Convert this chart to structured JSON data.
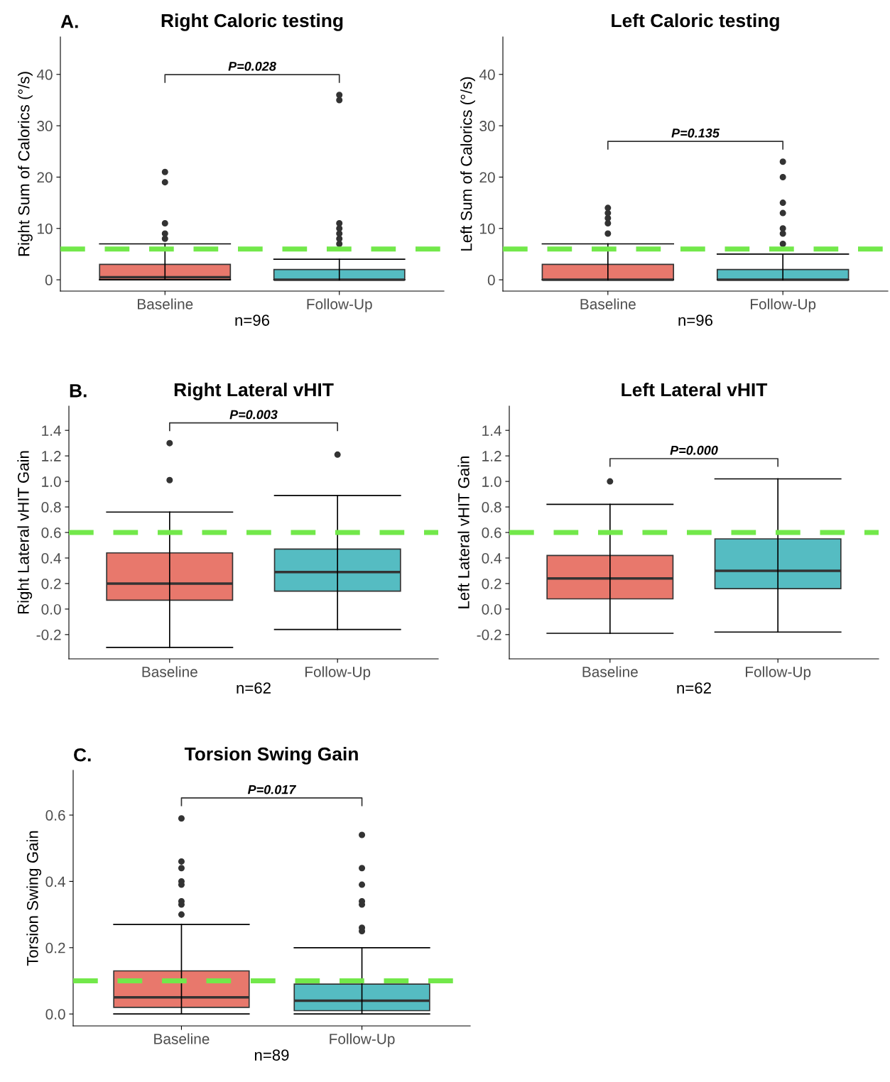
{
  "chart_data": [
    {
      "type": "box",
      "title": "Right Caloric testing",
      "ylabel": "Right Sum of Calorics (°/s)",
      "xlabel": "n=96",
      "categories": [
        "Baseline",
        "Follow-Up"
      ],
      "colors": [
        "#e8786c",
        "#55bcc2"
      ],
      "boxes": [
        {
          "low": 0,
          "q1": 0,
          "median": 0.5,
          "q3": 3,
          "high": 7,
          "outliers": [
            8,
            9,
            11,
            19,
            21
          ]
        },
        {
          "low": 0,
          "q1": 0,
          "median": 0,
          "q3": 2,
          "high": 4,
          "outliers": [
            7,
            8,
            9,
            10,
            11,
            35,
            36
          ]
        }
      ],
      "ylim": [
        -2.2,
        47.3
      ],
      "yticks": [
        0,
        10,
        20,
        30,
        40
      ],
      "grid": false,
      "ref_lines": [
        {
          "axis": "y",
          "value": 6,
          "color": "#72e84a",
          "line_style": "dashed"
        }
      ],
      "annotations": [
        "A.",
        "P=0.028"
      ]
    },
    {
      "type": "box",
      "title": "Left Caloric testing",
      "ylabel": "Left Sum of Calorics (°/s)",
      "xlabel": "n=96",
      "categories": [
        "Baseline",
        "Follow-Up"
      ],
      "colors": [
        "#e8786c",
        "#55bcc2"
      ],
      "boxes": [
        {
          "low": 0,
          "q1": 0,
          "median": 0,
          "q3": 3,
          "high": 7,
          "outliers": [
            9,
            11,
            12,
            13,
            14
          ]
        },
        {
          "low": 0,
          "q1": 0,
          "median": 0,
          "q3": 2,
          "high": 5,
          "outliers": [
            7,
            9,
            10,
            13,
            15,
            20,
            23
          ]
        }
      ],
      "ylim": [
        -2.2,
        47.3
      ],
      "yticks": [
        0,
        10,
        20,
        30,
        40
      ],
      "grid": false,
      "ref_lines": [
        {
          "axis": "y",
          "value": 6,
          "color": "#72e84a",
          "line_style": "dashed"
        }
      ],
      "annotations": [
        "P=0.135"
      ]
    },
    {
      "type": "box",
      "title": "Right Lateral vHIT",
      "ylabel": "Right Lateral vHIT Gain",
      "xlabel": "n=62",
      "categories": [
        "Baseline",
        "Follow-Up"
      ],
      "colors": [
        "#e8786c",
        "#55bcc2"
      ],
      "boxes": [
        {
          "low": -0.3,
          "q1": 0.07,
          "median": 0.2,
          "q3": 0.44,
          "high": 0.76,
          "outliers": [
            1.01,
            1.3
          ]
        },
        {
          "low": -0.16,
          "q1": 0.14,
          "median": 0.29,
          "q3": 0.47,
          "high": 0.89,
          "outliers": [
            1.21
          ]
        }
      ],
      "ylim": [
        -0.39,
        1.59
      ],
      "yticks": [
        {
          "value": -0.2,
          "label": "-0.2"
        },
        {
          "value": 0,
          "label": "0.0"
        },
        0.2,
        0.4,
        0.6,
        0.8,
        {
          "value": 1,
          "label": "1.0"
        },
        1.2,
        1.4
      ],
      "grid": false,
      "ref_lines": [
        {
          "axis": "y",
          "value": 0.6,
          "color": "#72e84a",
          "line_style": "dashed"
        }
      ],
      "annotations": [
        "B.",
        "P=0.003"
      ]
    },
    {
      "type": "box",
      "title": "Left Lateral vHIT",
      "ylabel": "Left Lateral vHIT Gain",
      "xlabel": "n=62",
      "categories": [
        "Baseline",
        "Follow-Up"
      ],
      "colors": [
        "#e8786c",
        "#55bcc2"
      ],
      "boxes": [
        {
          "low": -0.19,
          "q1": 0.08,
          "median": 0.24,
          "q3": 0.42,
          "high": 0.82,
          "outliers": [
            1.0
          ]
        },
        {
          "low": -0.18,
          "q1": 0.16,
          "median": 0.3,
          "q3": 0.55,
          "high": 1.02
        }
      ],
      "ylim": [
        -0.39,
        1.59
      ],
      "yticks": [
        {
          "value": -0.2,
          "label": "-0.2"
        },
        {
          "value": 0,
          "label": "0.0"
        },
        0.2,
        0.4,
        0.6,
        0.8,
        {
          "value": 1,
          "label": "1.0"
        },
        1.2,
        1.4
      ],
      "grid": false,
      "ref_lines": [
        {
          "axis": "y",
          "value": 0.6,
          "color": "#72e84a",
          "line_style": "dashed"
        }
      ],
      "annotations": [
        "P=0.000"
      ]
    },
    {
      "type": "box",
      "title": "Torsion Swing Gain",
      "ylabel": "Torsion Swing Gain",
      "xlabel": "n=89",
      "categories": [
        "Baseline",
        "Follow-Up"
      ],
      "colors": [
        "#e8786c",
        "#55bcc2"
      ],
      "boxes": [
        {
          "low": 0,
          "q1": 0.02,
          "median": 0.05,
          "q3": 0.13,
          "high": 0.27,
          "outliers": [
            0.3,
            0.33,
            0.34,
            0.39,
            0.4,
            0.44,
            0.46,
            0.59
          ]
        },
        {
          "low": 0,
          "q1": 0.01,
          "median": 0.04,
          "q3": 0.09,
          "high": 0.2,
          "outliers": [
            0.25,
            0.26,
            0.33,
            0.34,
            0.39,
            0.44,
            0.54
          ]
        }
      ],
      "ylim": [
        -0.036,
        0.735
      ],
      "yticks": [
        {
          "value": 0,
          "label": "0.0"
        },
        0.2,
        0.4,
        0.6
      ],
      "grid": false,
      "ref_lines": [
        {
          "axis": "y",
          "value": 0.1,
          "color": "#72e84a",
          "line_style": "dashed"
        }
      ],
      "annotations": [
        "C.",
        "P=0.017"
      ]
    }
  ]
}
